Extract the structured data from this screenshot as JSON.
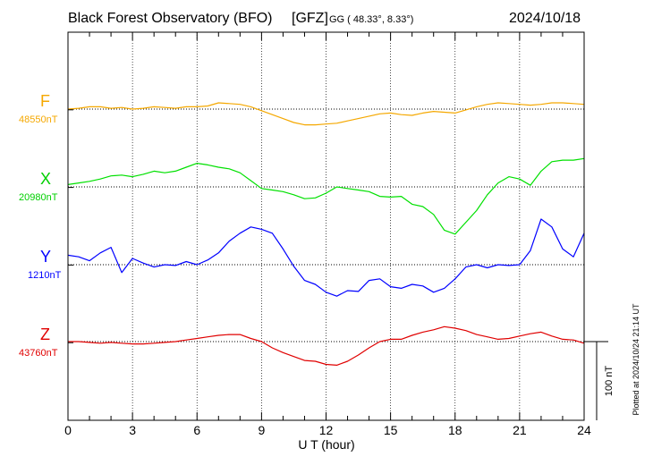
{
  "header": {
    "observatory": "Black Forest Observatory (BFO)",
    "source": "[GFZ]",
    "coords": "GG ( 48.33°,   8.33°)",
    "date": "2024/10/18"
  },
  "plotted_note": "Plotted at 2024/10/24 21:14 UT",
  "scale_label": "100 nT",
  "chart_data": {
    "type": "line",
    "xlabel": "U T (hour)",
    "xlim": [
      0,
      24
    ],
    "xticks": [
      0,
      3,
      6,
      9,
      12,
      15,
      18,
      21,
      24
    ],
    "grid": true,
    "scale_bar_nT": 100,
    "series": [
      {
        "name": "F",
        "baseline_label": "48550nT",
        "baseline": 48550,
        "color": "#f5a800",
        "x": [
          0,
          0.5,
          1,
          1.5,
          2,
          2.5,
          3,
          3.5,
          4,
          4.5,
          5,
          5.5,
          6,
          6.5,
          7,
          7.5,
          8,
          8.5,
          9,
          9.5,
          10,
          10.5,
          11,
          11.5,
          12,
          12.5,
          13,
          13.5,
          14,
          14.5,
          15,
          15.5,
          16,
          16.5,
          17,
          17.5,
          18,
          18.5,
          19,
          19.5,
          20,
          20.5,
          21,
          21.5,
          22,
          22.5,
          23,
          23.5,
          24
        ],
        "y": [
          48550,
          48551,
          48553,
          48553,
          48551,
          48552,
          48550,
          48551,
          48553,
          48552,
          48551,
          48553,
          48553,
          48554,
          48558,
          48557,
          48556,
          48553,
          48548,
          48543,
          48538,
          48533,
          48530,
          48530,
          48531,
          48532,
          48535,
          48538,
          48541,
          48544,
          48545,
          48543,
          48542,
          48545,
          48547,
          48546,
          48545,
          48549,
          48553,
          48556,
          48558,
          48557,
          48556,
          48555,
          48556,
          48558,
          48558,
          48557,
          48556
        ]
      },
      {
        "name": "X",
        "baseline_label": "20980nT",
        "baseline": 20980,
        "color": "#00e000",
        "x": [
          0,
          0.5,
          1,
          1.5,
          2,
          2.5,
          3,
          3.5,
          4,
          4.5,
          5,
          5.5,
          6,
          6.5,
          7,
          7.5,
          8,
          8.5,
          9,
          9.5,
          10,
          10.5,
          11,
          11.5,
          12,
          12.5,
          13,
          13.5,
          14,
          14.5,
          15,
          15.5,
          16,
          16.5,
          17,
          17.5,
          18,
          18.5,
          19,
          19.5,
          20,
          20.5,
          21,
          21.5,
          22,
          22.5,
          23,
          23.5,
          24
        ],
        "y": [
          20983,
          20985,
          20987,
          20990,
          20994,
          20995,
          20993,
          20996,
          21000,
          20998,
          21000,
          21005,
          21010,
          21008,
          21005,
          21003,
          20998,
          20988,
          20978,
          20976,
          20974,
          20970,
          20965,
          20966,
          20972,
          20980,
          20978,
          20976,
          20974,
          20968,
          20967,
          20968,
          20958,
          20955,
          20945,
          20925,
          20920,
          20935,
          20950,
          20970,
          20985,
          20993,
          20990,
          20982,
          21000,
          21012,
          21014,
          21014,
          21016
        ]
      },
      {
        "name": "Y",
        "baseline_label": "1210nT",
        "baseline": 1210,
        "color": "#0000ff",
        "x": [
          0,
          0.5,
          1,
          1.5,
          2,
          2.5,
          3,
          3.5,
          4,
          4.5,
          5,
          5.5,
          6,
          6.5,
          7,
          7.5,
          8,
          8.5,
          9,
          9.5,
          10,
          10.5,
          11,
          11.5,
          12,
          12.5,
          13,
          13.5,
          14,
          14.5,
          15,
          15.5,
          16,
          16.5,
          17,
          17.5,
          18,
          18.5,
          19,
          19.5,
          20,
          20.5,
          21,
          21.5,
          22,
          22.5,
          23,
          23.5,
          24
        ],
        "y": [
          1222,
          1220,
          1215,
          1225,
          1232,
          1200,
          1218,
          1212,
          1207,
          1210,
          1209,
          1214,
          1210,
          1216,
          1225,
          1240,
          1250,
          1258,
          1255,
          1250,
          1230,
          1208,
          1190,
          1185,
          1175,
          1170,
          1177,
          1176,
          1190,
          1192,
          1182,
          1180,
          1185,
          1183,
          1175,
          1180,
          1192,
          1207,
          1210,
          1206,
          1210,
          1209,
          1210,
          1228,
          1268,
          1258,
          1230,
          1220,
          1250
        ]
      },
      {
        "name": "Z",
        "baseline_label": "43760nT",
        "baseline": 43760,
        "color": "#e00000",
        "x": [
          0,
          0.5,
          1,
          1.5,
          2,
          2.5,
          3,
          3.5,
          4,
          4.5,
          5,
          5.5,
          6,
          6.5,
          7,
          7.5,
          8,
          8.5,
          9,
          9.5,
          10,
          10.5,
          11,
          11.5,
          12,
          12.5,
          13,
          13.5,
          14,
          14.5,
          15,
          15.5,
          16,
          16.5,
          17,
          17.5,
          18,
          18.5,
          19,
          19.5,
          20,
          20.5,
          21,
          21.5,
          22,
          22.5,
          23,
          23.5,
          24
        ],
        "y": [
          43760,
          43760,
          43759,
          43758,
          43759,
          43758,
          43757,
          43757,
          43758,
          43759,
          43760,
          43762,
          43764,
          43766,
          43768,
          43769,
          43769,
          43764,
          43760,
          43752,
          43746,
          43741,
          43736,
          43735,
          43731,
          43730,
          43735,
          43743,
          43752,
          43760,
          43763,
          43763,
          43768,
          43772,
          43775,
          43779,
          43777,
          43774,
          43769,
          43766,
          43763,
          43764,
          43767,
          43770,
          43772,
          43767,
          43763,
          43762,
          43758
        ]
      }
    ]
  }
}
